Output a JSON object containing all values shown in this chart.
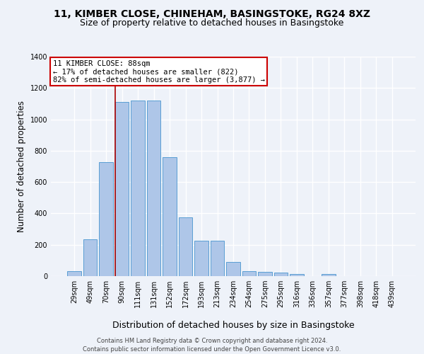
{
  "title": "11, KIMBER CLOSE, CHINEHAM, BASINGSTOKE, RG24 8XZ",
  "subtitle": "Size of property relative to detached houses in Basingstoke",
  "xlabel": "Distribution of detached houses by size in Basingstoke",
  "ylabel": "Number of detached properties",
  "categories": [
    "29sqm",
    "49sqm",
    "70sqm",
    "90sqm",
    "111sqm",
    "131sqm",
    "152sqm",
    "172sqm",
    "193sqm",
    "213sqm",
    "234sqm",
    "254sqm",
    "275sqm",
    "295sqm",
    "316sqm",
    "336sqm",
    "357sqm",
    "377sqm",
    "398sqm",
    "418sqm",
    "439sqm"
  ],
  "values": [
    30,
    235,
    725,
    1110,
    1120,
    1120,
    760,
    375,
    225,
    225,
    90,
    30,
    25,
    22,
    15,
    0,
    12,
    0,
    0,
    0,
    0
  ],
  "bar_color": "#aec6e8",
  "bar_edge_color": "#5a9fd4",
  "vline_color": "#aa0000",
  "annotation_line1": "11 KIMBER CLOSE: 88sqm",
  "annotation_line2": "← 17% of detached houses are smaller (822)",
  "annotation_line3": "82% of semi-detached houses are larger (3,877) →",
  "annotation_box_color": "#ffffff",
  "annotation_box_edge": "#cc0000",
  "ylim": [
    0,
    1400
  ],
  "yticks": [
    0,
    200,
    400,
    600,
    800,
    1000,
    1200,
    1400
  ],
  "footer1": "Contains HM Land Registry data © Crown copyright and database right 2024.",
  "footer2": "Contains public sector information licensed under the Open Government Licence v3.0.",
  "bg_color": "#eef2f9",
  "grid_color": "#ffffff",
  "title_fontsize": 10,
  "subtitle_fontsize": 9,
  "tick_fontsize": 7,
  "ylabel_fontsize": 8.5,
  "xlabel_fontsize": 9,
  "annotation_fontsize": 7.5,
  "footer_fontsize": 6
}
